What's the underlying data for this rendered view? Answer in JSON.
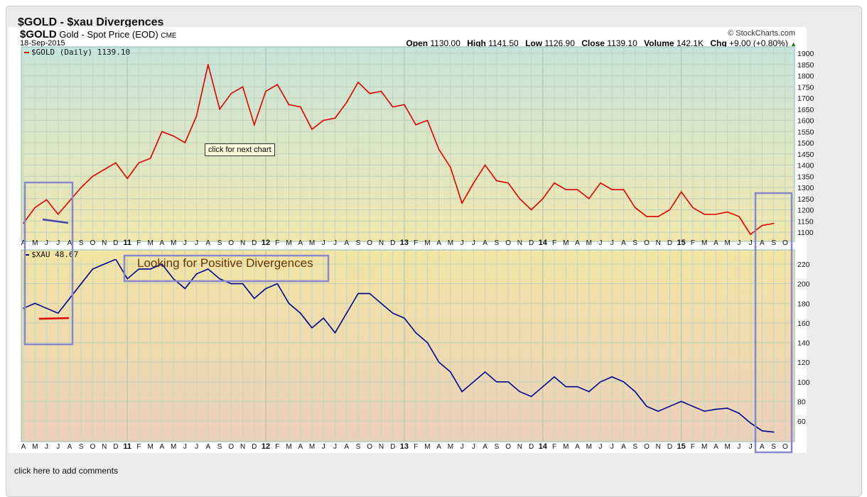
{
  "page_title": "$GOLD - $xau Divergences",
  "header": {
    "symbol": "$GOLD",
    "description": "Gold - Spot Price (EOD)",
    "exchange": "CME",
    "date": "18-Sep-2015",
    "copyright": "© StockCharts.com",
    "open_label": "Open",
    "open": "1130.00",
    "high_label": "High",
    "high": "1141.50",
    "low_label": "Low",
    "low": "1126.90",
    "close_label": "Close",
    "close": "1139.10",
    "volume_label": "Volume",
    "volume": "142.1K",
    "chg_label": "Chg",
    "chg": "+9.00 (+0.80%)"
  },
  "tooltip": "click for next chart",
  "annotation": "Looking for Positive Divergences",
  "comments_link": "click here to add comments",
  "colors": {
    "gold": "#e00000",
    "xau": "#000090",
    "box": "#8888cc"
  },
  "chart_data": [
    {
      "type": "line",
      "legend": "$GOLD (Daily) 1139.10",
      "ylim": [
        1100,
        1900
      ],
      "yticks": [
        1100,
        1150,
        1200,
        1250,
        1300,
        1350,
        1400,
        1450,
        1500,
        1550,
        1600,
        1650,
        1700,
        1750,
        1800,
        1850,
        1900
      ],
      "x_labels": [
        "A",
        "M",
        "J",
        "J",
        "A",
        "S",
        "O",
        "N",
        "D",
        "11",
        "F",
        "M",
        "A",
        "M",
        "J",
        "J",
        "A",
        "S",
        "O",
        "N",
        "D",
        "12",
        "F",
        "M",
        "A",
        "M",
        "J",
        "J",
        "A",
        "S",
        "O",
        "N",
        "D",
        "13",
        "F",
        "M",
        "A",
        "M",
        "J",
        "J",
        "A",
        "S",
        "O",
        "N",
        "D",
        "14",
        "F",
        "M",
        "A",
        "M",
        "J",
        "J",
        "A",
        "S",
        "O",
        "N",
        "D",
        "15",
        "F",
        "M",
        "A",
        "M",
        "J",
        "J",
        "A",
        "S",
        "O"
      ],
      "values": [
        1140,
        1210,
        1245,
        1180,
        1240,
        1300,
        1350,
        1380,
        1410,
        1340,
        1410,
        1430,
        1550,
        1530,
        1500,
        1620,
        1850,
        1650,
        1720,
        1750,
        1580,
        1730,
        1760,
        1670,
        1660,
        1560,
        1600,
        1610,
        1680,
        1770,
        1720,
        1730,
        1660,
        1670,
        1580,
        1600,
        1470,
        1390,
        1230,
        1320,
        1400,
        1330,
        1320,
        1250,
        1200,
        1250,
        1320,
        1290,
        1290,
        1250,
        1320,
        1290,
        1290,
        1210,
        1170,
        1170,
        1200,
        1280,
        1210,
        1180,
        1180,
        1190,
        1170,
        1090,
        1130,
        1139.1
      ]
    },
    {
      "type": "line",
      "legend": "$XAU 48.67",
      "ylim": [
        50,
        230
      ],
      "yticks": [
        60,
        80,
        100,
        120,
        140,
        160,
        180,
        200,
        220
      ],
      "values": [
        175,
        180,
        175,
        170,
        185,
        200,
        215,
        220,
        225,
        205,
        215,
        215,
        220,
        205,
        195,
        210,
        215,
        205,
        200,
        200,
        185,
        195,
        200,
        180,
        170,
        155,
        165,
        150,
        170,
        190,
        190,
        180,
        170,
        165,
        150,
        140,
        120,
        110,
        90,
        100,
        110,
        100,
        100,
        90,
        85,
        95,
        105,
        95,
        95,
        90,
        100,
        105,
        100,
        90,
        75,
        70,
        75,
        80,
        75,
        70,
        72,
        73,
        68,
        58,
        50,
        48.67
      ]
    }
  ]
}
